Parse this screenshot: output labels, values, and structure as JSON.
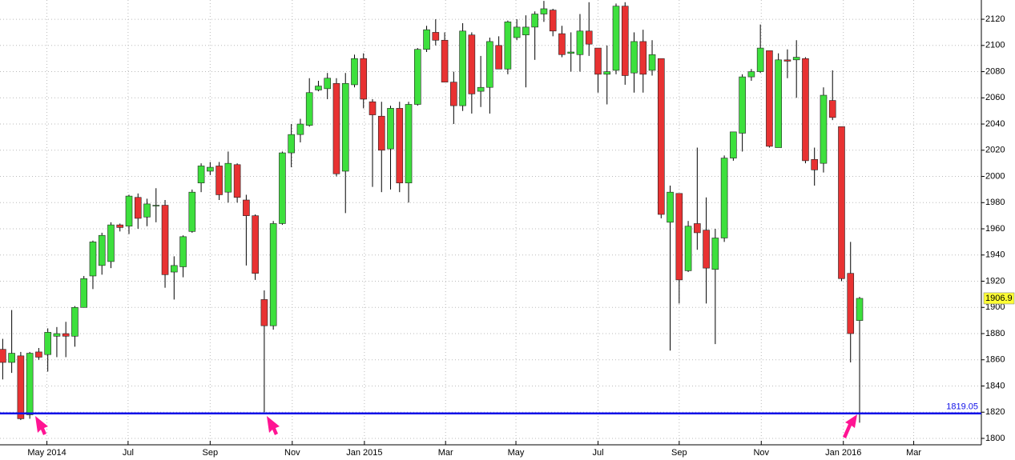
{
  "chart_data": {
    "type": "candlestick",
    "up_color": "#3de03d",
    "down_color": "#e83232",
    "grid": true,
    "ylim": [
      1795.1,
      2134.7
    ],
    "yticks": [
      1800,
      1820,
      1840,
      1860,
      1880,
      1900,
      1920,
      1940,
      1960,
      1980,
      2000,
      2020,
      2040,
      2060,
      2080,
      2100,
      2120
    ],
    "xlim": [
      -0.3,
      108.5
    ],
    "xticks": [
      {
        "value": 4.9,
        "label": "May 2014"
      },
      {
        "value": 13.9,
        "label": "Jul"
      },
      {
        "value": 23,
        "label": "Sep"
      },
      {
        "value": 32.1,
        "label": "Nov"
      },
      {
        "value": 40.1,
        "label": "Jan 2015"
      },
      {
        "value": 49.1,
        "label": "Mar"
      },
      {
        "value": 56.9,
        "label": "May"
      },
      {
        "value": 66,
        "label": "Jul"
      },
      {
        "value": 75,
        "label": "Sep"
      },
      {
        "value": 84.1,
        "label": "Nov"
      },
      {
        "value": 93.2,
        "label": "Jan 2016"
      },
      {
        "value": 101,
        "label": "Mar"
      }
    ],
    "open": [
      1868,
      1858,
      1863,
      1818,
      1866,
      1864,
      1878,
      1880,
      1878,
      1900,
      1924,
      1932,
      1935,
      1963,
      1962,
      1984,
      1969,
      1978,
      1978,
      1927,
      1931,
      1958,
      1995,
      2004,
      2008,
      1988,
      2009,
      1982,
      1970,
      1906,
      1886,
      1964,
      2018,
      2032,
      2039,
      2066,
      2067,
      2071,
      2004,
      2070,
      2090,
      2057,
      2046,
      2021,
      2052,
      1995,
      2055,
      2097,
      2110,
      2104,
      2072,
      2054,
      2108,
      2065,
      2068,
      2100,
      2082,
      2106,
      2108,
      2114,
      2124,
      2127,
      2109,
      2094,
      2093,
      2111,
      2098,
      2078,
      2081,
      2130,
      2079,
      2103,
      2081,
      2090,
      1965,
      1987,
      1928,
      1964,
      1959,
      1929,
      1953,
      2014,
      2033,
      2076,
      2080,
      2096,
      2022,
      2089,
      2089,
      2090,
      2013,
      2010,
      2058,
      2038,
      1926,
      1890
    ],
    "high": [
      1876,
      1898,
      1866,
      1866,
      1869,
      1884,
      1885,
      1889,
      1901,
      1924,
      1951,
      1957,
      1965,
      1964,
      1986,
      1987,
      1983,
      1991,
      1982,
      1939,
      1955,
      1990,
      2010,
      2011,
      2011,
      2019,
      2010,
      1986,
      1971,
      1913,
      1966,
      2019,
      2040,
      2044,
      2075,
      2073,
      2079,
      2075,
      2079,
      2093,
      2094,
      2059,
      2057,
      2054,
      2057,
      2057,
      2098,
      2115,
      2120,
      2110,
      2080,
      2117,
      2110,
      2092,
      2106,
      2107,
      2119,
      2120,
      2123,
      2126,
      2134,
      2128,
      2115,
      2110,
      2124,
      2133,
      2098,
      2100,
      2132,
      2133,
      2110,
      2112,
      2104,
      2090,
      1993,
      1987,
      1966,
      2022,
      1984,
      1960,
      2016,
      2034,
      2078,
      2082,
      2116,
      2096,
      2094,
      2097,
      2104,
      2091,
      2022,
      2068,
      2081,
      2038,
      1950,
      1908
    ],
    "low": [
      1845,
      1850,
      1814,
      1815,
      1860,
      1851,
      1862,
      1862,
      1870,
      1900,
      1914,
      1925,
      1930,
      1958,
      1956,
      1960,
      1962,
      1965,
      1915,
      1906,
      1923,
      1957,
      1988,
      2001,
      1982,
      1980,
      1980,
      1932,
      1921,
      1820,
      1883,
      1963,
      2007,
      2026,
      2038,
      2065,
      2059,
      2000,
      1972,
      2068,
      2052,
      1992,
      1988,
      1990,
      1988,
      1980,
      2054,
      2095,
      2100,
      2072,
      2040,
      2050,
      2048,
      2053,
      2048,
      2082,
      2078,
      2104,
      2068,
      2089,
      2118,
      2107,
      2091,
      2080,
      2080,
      2092,
      2064,
      2055,
      2078,
      2070,
      2064,
      2064,
      2077,
      1968,
      1867,
      1903,
      1927,
      1944,
      1903,
      1872,
      1950,
      2012,
      2019,
      2073,
      2079,
      2022,
      2022,
      2075,
      2060,
      2010,
      1993,
      2003,
      2043,
      1920,
      1858,
      1812
    ],
    "close": [
      1858,
      1865,
      1815,
      1865,
      1862,
      1881,
      1880,
      1878,
      1900,
      1922,
      1950,
      1955,
      1963,
      1961,
      1985,
      1968,
      1979,
      1978,
      1925,
      1932,
      1954,
      1988,
      2008,
      2007,
      1986,
      2010,
      1984,
      1970,
      1926,
      1886,
      1964,
      2018,
      2032,
      2040,
      2064,
      2069,
      2075,
      2002,
      2071,
      2090,
      2059,
      2047,
      2020,
      2052,
      1995,
      2055,
      2097,
      2112,
      2104,
      2072,
      2054,
      2111,
      2063,
      2068,
      2103,
      2082,
      2118,
      2114,
      2114,
      2124,
      2128,
      2111,
      2093,
      2095,
      2111,
      2101,
      2078,
      2080,
      2130,
      2077,
      2103,
      2078,
      2093,
      1971,
      1988,
      1921,
      1962,
      1957,
      1930,
      1953,
      2014,
      2034,
      2076,
      2080,
      2098,
      2023,
      2089,
      2088,
      2091,
      2012,
      2005,
      2062,
      2045,
      1922,
      1880,
      1906.9
    ],
    "hline": 1819.05,
    "hline_color": "#1010e8"
  }
}
